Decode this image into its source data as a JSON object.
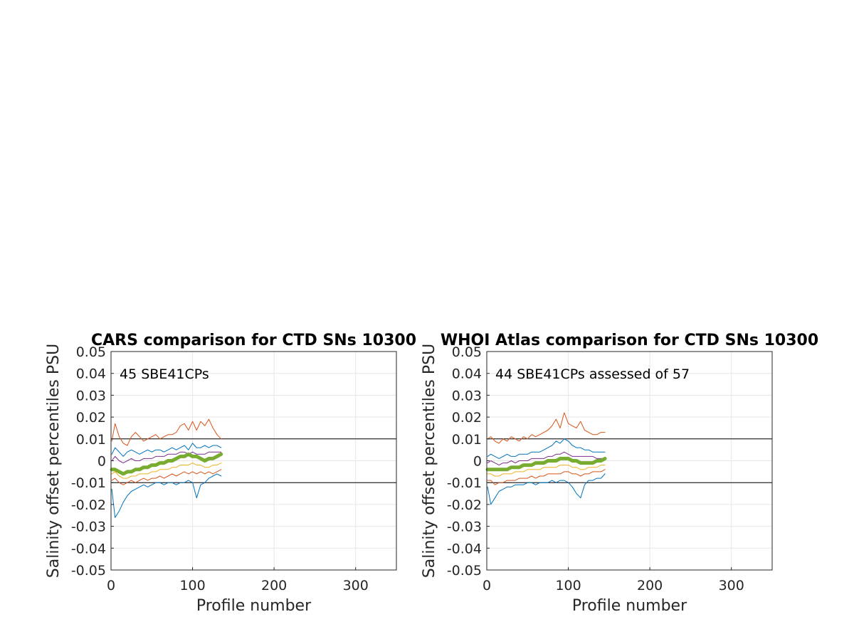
{
  "chart_data": [
    {
      "type": "line",
      "title": "CARS comparison for CTD SNs 10300",
      "xlabel": "Profile number",
      "ylabel": "Salinity offset percentiles PSU",
      "annotation": "45 SBE41CPs",
      "xlim": [
        0,
        350
      ],
      "ylim": [
        -0.05,
        0.05
      ],
      "xticks": [
        "0",
        "100",
        "200",
        "300"
      ],
      "yticks": [
        "-0.05",
        "-0.04",
        "-0.03",
        "-0.02",
        "-0.01",
        "0",
        "0.01",
        "0.02",
        "0.03",
        "0.04",
        "0.05"
      ],
      "reference_lines": [
        0.01,
        -0.01
      ],
      "grid": true,
      "x": [
        1,
        5,
        10,
        15,
        20,
        25,
        30,
        35,
        40,
        45,
        50,
        55,
        60,
        65,
        70,
        75,
        80,
        85,
        90,
        95,
        100,
        105,
        110,
        115,
        120,
        125,
        130,
        135
      ],
      "series": [
        {
          "color": "#d95319",
          "values": [
            0.009,
            0.017,
            0.011,
            0.008,
            0.007,
            0.011,
            0.013,
            0.011,
            0.009,
            0.01,
            0.011,
            0.012,
            0.01,
            0.011,
            0.012,
            0.012,
            0.013,
            0.016,
            0.017,
            0.014,
            0.018,
            0.014,
            0.018,
            0.016,
            0.019,
            0.015,
            0.012,
            0.01
          ]
        },
        {
          "color": "#0072bd",
          "values": [
            0.003,
            0.006,
            0.004,
            0.002,
            0.004,
            0.005,
            0.004,
            0.003,
            0.004,
            0.005,
            0.004,
            0.005,
            0.005,
            0.004,
            0.005,
            0.006,
            0.005,
            0.006,
            0.007,
            0.005,
            0.008,
            0.006,
            0.006,
            0.007,
            0.006,
            0.007,
            0.007,
            0.006
          ]
        },
        {
          "color": "#7e2f8e",
          "values": [
            0.0,
            0.002,
            0.0,
            -0.001,
            0.0,
            0.001,
            0.0,
            0.0,
            0.001,
            0.001,
            0.001,
            0.002,
            0.002,
            0.002,
            0.003,
            0.003,
            0.003,
            0.004,
            0.004,
            0.003,
            0.004,
            0.003,
            0.003,
            0.003,
            0.004,
            0.004,
            0.004,
            0.004
          ]
        },
        {
          "color": "#77ac30",
          "width": 5,
          "values": [
            -0.004,
            -0.004,
            -0.005,
            -0.006,
            -0.005,
            -0.005,
            -0.004,
            -0.004,
            -0.003,
            -0.003,
            -0.002,
            -0.002,
            -0.001,
            -0.001,
            0.0,
            0.0,
            0.001,
            0.002,
            0.002,
            0.003,
            0.002,
            0.002,
            0.001,
            0.0,
            0.001,
            0.001,
            0.002,
            0.003
          ]
        },
        {
          "color": "#edb120",
          "values": [
            -0.006,
            -0.005,
            -0.007,
            -0.008,
            -0.008,
            -0.007,
            -0.007,
            -0.006,
            -0.006,
            -0.006,
            -0.005,
            -0.005,
            -0.004,
            -0.004,
            -0.004,
            -0.003,
            -0.003,
            -0.002,
            -0.002,
            -0.002,
            -0.001,
            -0.002,
            -0.002,
            -0.003,
            -0.003,
            -0.002,
            -0.002,
            -0.001
          ]
        },
        {
          "color": "#d95319",
          "values": [
            -0.009,
            -0.008,
            -0.01,
            -0.011,
            -0.01,
            -0.009,
            -0.01,
            -0.009,
            -0.008,
            -0.009,
            -0.008,
            -0.008,
            -0.007,
            -0.008,
            -0.007,
            -0.006,
            -0.007,
            -0.006,
            -0.005,
            -0.006,
            -0.005,
            -0.006,
            -0.005,
            -0.006,
            -0.005,
            -0.006,
            -0.005,
            -0.004
          ]
        },
        {
          "color": "#0072bd",
          "values": [
            -0.013,
            -0.026,
            -0.023,
            -0.019,
            -0.016,
            -0.014,
            -0.013,
            -0.012,
            -0.011,
            -0.012,
            -0.011,
            -0.01,
            -0.01,
            -0.011,
            -0.01,
            -0.01,
            -0.011,
            -0.01,
            -0.01,
            -0.009,
            -0.01,
            -0.017,
            -0.011,
            -0.01,
            -0.008,
            -0.007,
            -0.006,
            -0.007
          ]
        }
      ]
    },
    {
      "type": "line",
      "title": "WHOI Atlas comparison for CTD SNs 10300",
      "xlabel": "Profile number",
      "ylabel": "Salinity offset percentiles PSU",
      "annotation": "44 SBE41CPs assessed of 57",
      "xlim": [
        0,
        350
      ],
      "ylim": [
        -0.05,
        0.05
      ],
      "xticks": [
        "0",
        "100",
        "200",
        "300"
      ],
      "yticks": [
        "-0.05",
        "-0.04",
        "-0.03",
        "-0.02",
        "-0.01",
        "0",
        "0.01",
        "0.02",
        "0.03",
        "0.04",
        "0.05"
      ],
      "reference_lines": [
        0.01,
        -0.01
      ],
      "grid": true,
      "x": [
        1,
        5,
        10,
        15,
        20,
        25,
        30,
        35,
        40,
        45,
        50,
        55,
        60,
        65,
        70,
        75,
        80,
        85,
        90,
        95,
        100,
        105,
        110,
        115,
        120,
        125,
        130,
        135,
        140,
        145
      ],
      "series": [
        {
          "color": "#d95319",
          "values": [
            0.01,
            0.011,
            0.009,
            0.008,
            0.01,
            0.009,
            0.011,
            0.01,
            0.009,
            0.011,
            0.01,
            0.012,
            0.011,
            0.012,
            0.013,
            0.014,
            0.016,
            0.019,
            0.015,
            0.022,
            0.017,
            0.016,
            0.015,
            0.018,
            0.014,
            0.013,
            0.012,
            0.012,
            0.013,
            0.013
          ]
        },
        {
          "color": "#0072bd",
          "values": [
            0.002,
            0.003,
            0.002,
            0.001,
            0.002,
            0.003,
            0.002,
            0.002,
            0.003,
            0.003,
            0.003,
            0.004,
            0.004,
            0.004,
            0.005,
            0.006,
            0.007,
            0.009,
            0.008,
            0.01,
            0.009,
            0.007,
            0.006,
            0.006,
            0.005,
            0.005,
            0.004,
            0.004,
            0.004,
            0.004
          ]
        },
        {
          "color": "#7e2f8e",
          "values": [
            -0.001,
            0.0,
            -0.001,
            -0.002,
            -0.001,
            -0.001,
            0.0,
            -0.001,
            0.0,
            0.0,
            0.0,
            0.001,
            0.001,
            0.001,
            0.001,
            0.002,
            0.002,
            0.003,
            0.003,
            0.004,
            0.003,
            0.002,
            0.002,
            0.002,
            0.002,
            0.002,
            0.002,
            0.001,
            0.001,
            0.001
          ]
        },
        {
          "color": "#77ac30",
          "width": 5,
          "values": [
            -0.004,
            -0.004,
            -0.004,
            -0.004,
            -0.004,
            -0.004,
            -0.003,
            -0.003,
            -0.003,
            -0.002,
            -0.002,
            -0.002,
            -0.001,
            -0.001,
            -0.001,
            0.0,
            0.0,
            0.0,
            0.001,
            0.001,
            0.001,
            0.0,
            0.0,
            -0.001,
            -0.001,
            -0.001,
            -0.001,
            0.0,
            0.0,
            0.001
          ]
        },
        {
          "color": "#edb120",
          "values": [
            -0.006,
            -0.006,
            -0.007,
            -0.007,
            -0.006,
            -0.006,
            -0.006,
            -0.005,
            -0.005,
            -0.005,
            -0.004,
            -0.004,
            -0.004,
            -0.004,
            -0.003,
            -0.003,
            -0.003,
            -0.003,
            -0.002,
            -0.002,
            -0.002,
            -0.003,
            -0.003,
            -0.004,
            -0.004,
            -0.003,
            -0.003,
            -0.003,
            -0.002,
            -0.002
          ]
        },
        {
          "color": "#d95319",
          "values": [
            -0.009,
            -0.009,
            -0.011,
            -0.01,
            -0.01,
            -0.009,
            -0.009,
            -0.009,
            -0.008,
            -0.008,
            -0.008,
            -0.007,
            -0.008,
            -0.007,
            -0.007,
            -0.006,
            -0.006,
            -0.006,
            -0.006,
            -0.005,
            -0.005,
            -0.006,
            -0.006,
            -0.007,
            -0.006,
            -0.006,
            -0.005,
            -0.005,
            -0.005,
            -0.004
          ]
        },
        {
          "color": "#0072bd",
          "values": [
            -0.012,
            -0.02,
            -0.017,
            -0.014,
            -0.013,
            -0.012,
            -0.012,
            -0.011,
            -0.011,
            -0.011,
            -0.01,
            -0.01,
            -0.011,
            -0.01,
            -0.01,
            -0.01,
            -0.009,
            -0.01,
            -0.009,
            -0.009,
            -0.01,
            -0.012,
            -0.015,
            -0.017,
            -0.011,
            -0.009,
            -0.009,
            -0.008,
            -0.008,
            -0.006
          ]
        }
      ]
    }
  ]
}
